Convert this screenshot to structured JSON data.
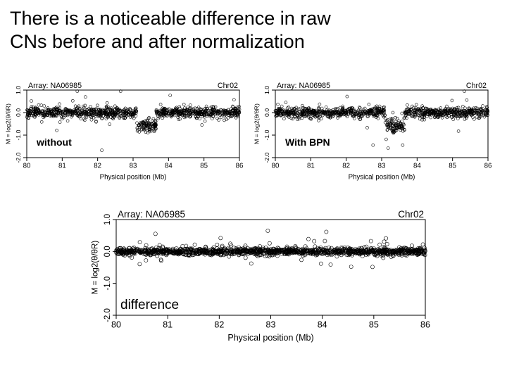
{
  "slide": {
    "title_line1": "There is a noticeable difference in raw",
    "title_line2": "CNs before and after normalization"
  },
  "chart_data": [
    {
      "type": "scatter",
      "array_label": "Array: NA06985",
      "chromosome": "Chr02",
      "annotation": "without",
      "xlabel": "Physical position (Mb)",
      "ylabel": "M = log2(θ/θR)",
      "xlim": [
        80,
        86
      ],
      "ylim": [
        -2.0,
        1.0
      ],
      "xticks": [
        "80",
        "81",
        "82",
        "83",
        "84",
        "85",
        "86"
      ],
      "yticks": [
        "-2.0",
        "-1.0",
        "0.0",
        "1.0"
      ],
      "segments": [
        {
          "x_start": 80.0,
          "x_end": 83.1,
          "mean": 0.0,
          "spread": 0.25
        },
        {
          "x_start": 83.1,
          "x_end": 83.65,
          "mean": -0.6,
          "spread": 0.3
        },
        {
          "x_start": 83.65,
          "x_end": 86.0,
          "mean": 0.0,
          "spread": 0.25
        }
      ]
    },
    {
      "type": "scatter",
      "array_label": "Array: NA06985",
      "chromosome": "Chr02",
      "annotation": "With BPN",
      "xlabel": "Physical position (Mb)",
      "ylabel": "M = log2(θ/θR)",
      "xlim": [
        80,
        86
      ],
      "ylim": [
        -2.0,
        1.0
      ],
      "xticks": [
        "80",
        "81",
        "82",
        "83",
        "84",
        "85",
        "86"
      ],
      "yticks": [
        "-2.0",
        "-1.0",
        "0.0",
        "1.0"
      ],
      "segments": [
        {
          "x_start": 80.0,
          "x_end": 83.1,
          "mean": 0.0,
          "spread": 0.25
        },
        {
          "x_start": 83.1,
          "x_end": 83.65,
          "mean": -0.6,
          "spread": 0.3
        },
        {
          "x_start": 83.65,
          "x_end": 86.0,
          "mean": 0.0,
          "spread": 0.25
        }
      ]
    },
    {
      "type": "scatter",
      "array_label": "Array: NA06985",
      "chromosome": "Chr02",
      "annotation": "difference",
      "xlabel": "Physical position (Mb)",
      "ylabel": "M = log2(θ/θR)",
      "xlim": [
        80,
        86
      ],
      "ylim": [
        -2.0,
        1.0
      ],
      "xticks": [
        "80",
        "81",
        "82",
        "83",
        "84",
        "85",
        "86"
      ],
      "yticks": [
        "-2.0",
        "-1.0",
        "0.0",
        "1.0"
      ],
      "segments": [
        {
          "x_start": 80.0,
          "x_end": 86.0,
          "mean": 0.0,
          "spread": 0.12
        }
      ]
    }
  ]
}
